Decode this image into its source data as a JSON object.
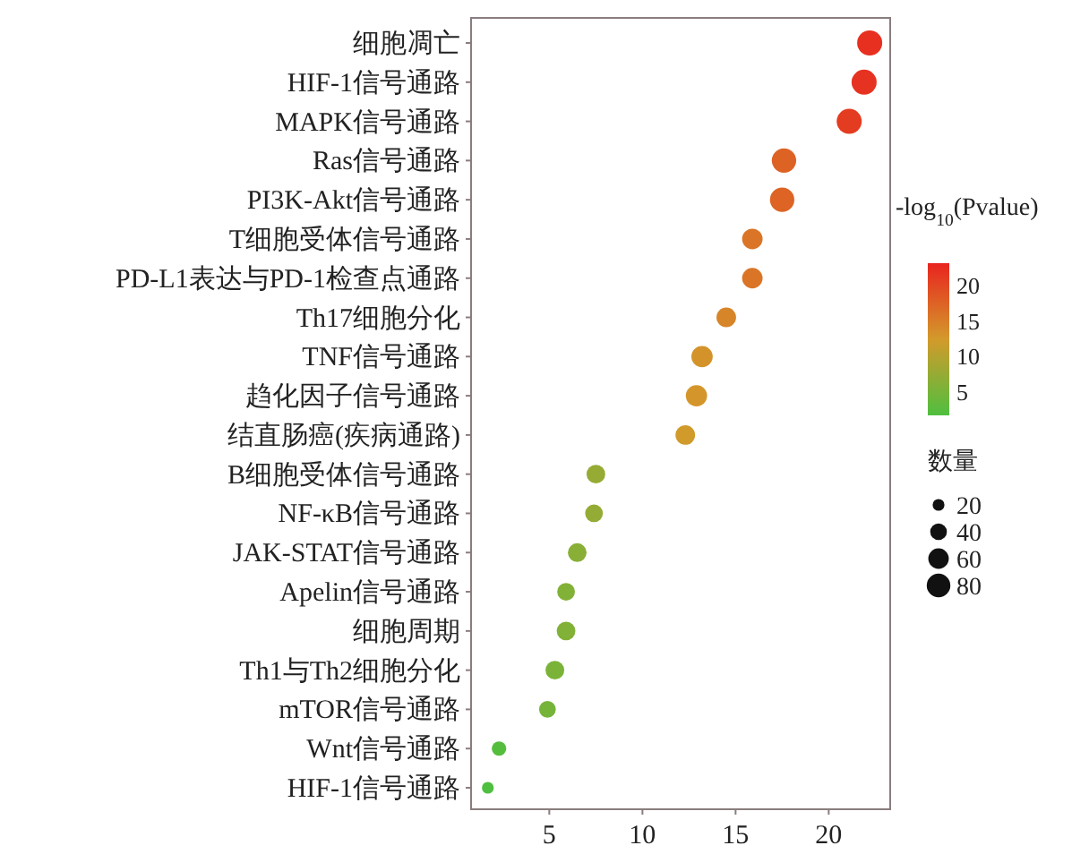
{
  "chart_data": {
    "type": "bubble",
    "orientation": "horizontal",
    "categories": [
      "细胞凋亡",
      "HIF-1信号通路",
      "MAPK信号通路",
      "Ras信号通路",
      "PI3K-Akt信号通路",
      "T细胞受体信号通路",
      "PD-L1表达与PD-1检查点通路",
      "Th17细胞分化",
      "TNF信号通路",
      "趋化因子信号通路",
      "结直肠癌(疾病通路)",
      "B细胞受体信号通路",
      "NF-κB信号通路",
      "JAK-STAT信号通路",
      "Apelin信号通路",
      "细胞周期",
      "Th1与Th2细胞分化",
      "mTOR信号通路",
      "Wnt信号通路",
      "HIF-1信号通路"
    ],
    "values": [
      22.2,
      21.9,
      21.1,
      17.6,
      17.5,
      15.9,
      15.9,
      14.5,
      13.2,
      12.9,
      12.3,
      7.5,
      7.4,
      6.5,
      5.9,
      5.9,
      5.3,
      4.9,
      2.3,
      1.7
    ],
    "cvalues": [
      22.2,
      21.9,
      21.1,
      17.6,
      17.5,
      15.9,
      15.9,
      14.5,
      13.2,
      12.9,
      12.3,
      7.5,
      7.4,
      6.5,
      5.9,
      5.9,
      5.3,
      4.9,
      2.3,
      1.7
    ],
    "sizes": [
      90,
      90,
      90,
      85,
      85,
      60,
      60,
      55,
      65,
      65,
      55,
      50,
      45,
      50,
      45,
      50,
      50,
      40,
      30,
      20
    ],
    "size_legend": [
      20,
      40,
      60,
      80
    ],
    "xlim": [
      0.8,
      23.3
    ],
    "xticks": [
      5,
      10,
      15,
      20
    ],
    "clim": [
      1.8,
      23.3
    ],
    "cticks": [
      5,
      10,
      15,
      20
    ],
    "clabel": "-log$_{10}$(Pvalue)",
    "legend_title": "数量"
  }
}
